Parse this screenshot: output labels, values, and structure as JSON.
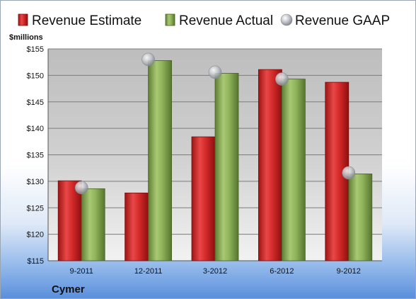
{
  "chart_data": {
    "type": "bar",
    "unit_label": "$millions",
    "company": "Cymer",
    "categories": [
      "9-2011",
      "12-2011",
      "3-2012",
      "6-2012",
      "9-2012"
    ],
    "series": [
      {
        "name": "Revenue Estimate",
        "kind": "bar",
        "color": "#d42a2a",
        "values": [
          130.1,
          127.8,
          138.4,
          151.1,
          148.7
        ]
      },
      {
        "name": "Revenue Actual",
        "kind": "bar",
        "color": "#8fb35a",
        "values": [
          128.6,
          152.8,
          150.4,
          149.3,
          131.4
        ]
      },
      {
        "name": "Revenue GAAP",
        "kind": "marker",
        "color": "#b8bcc2",
        "values": [
          128.8,
          153.0,
          150.6,
          149.3,
          131.6
        ]
      }
    ],
    "ylim": [
      115,
      155
    ],
    "yticks": [
      "$115",
      "$120",
      "$125",
      "$130",
      "$135",
      "$140",
      "$145",
      "$150",
      "$155"
    ],
    "grid": true,
    "legend_position": "top"
  }
}
